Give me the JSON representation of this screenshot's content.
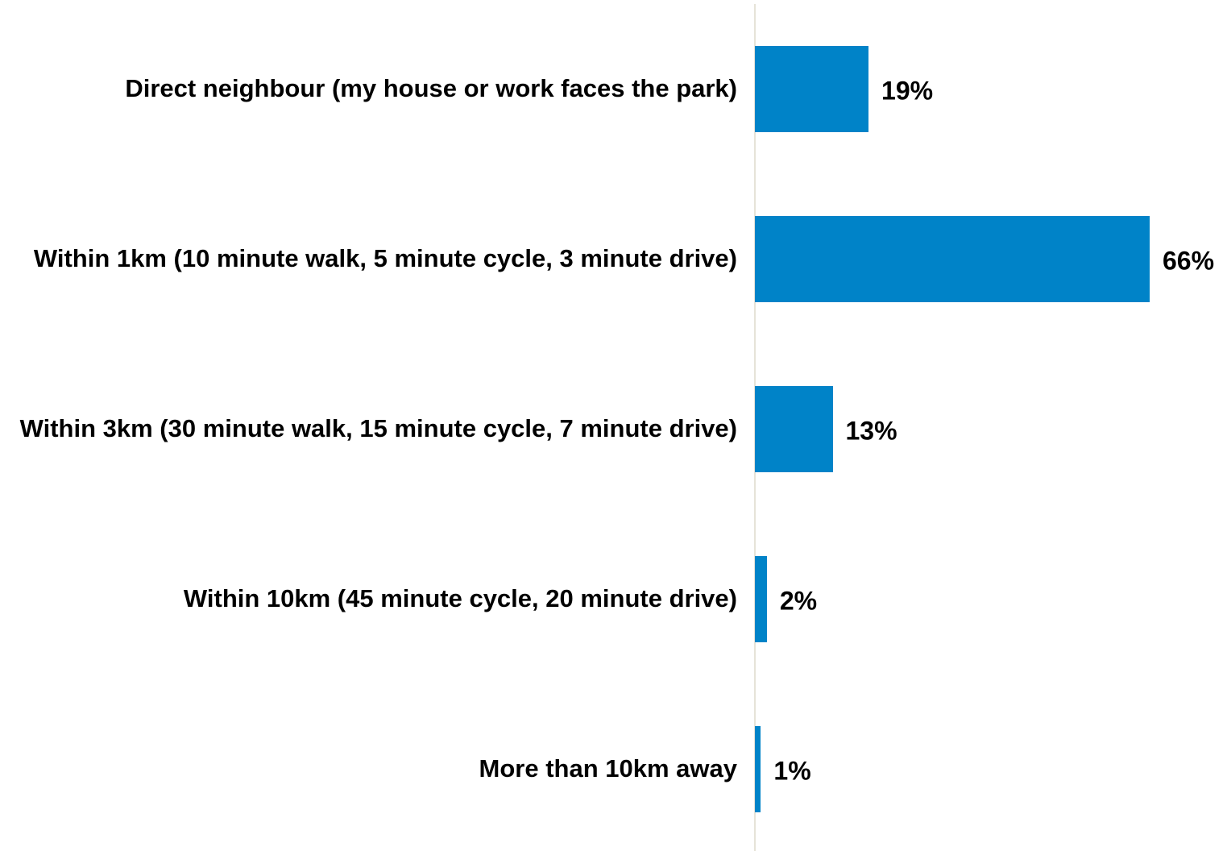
{
  "chart_data": {
    "type": "bar",
    "orientation": "horizontal",
    "categories": [
      "Direct neighbour (my house or work faces the park)",
      "Within 1km (10 minute walk, 5 minute cycle, 3 minute drive)",
      "Within 3km (30 minute walk, 15 minute cycle, 7 minute drive)",
      "Within 10km (45 minute cycle, 20 minute drive)",
      "More than 10km away"
    ],
    "values": [
      19,
      66,
      13,
      2,
      1
    ],
    "value_labels": [
      "19%",
      "66%",
      "13%",
      "2%",
      "1%"
    ],
    "color": "#0083c8"
  }
}
